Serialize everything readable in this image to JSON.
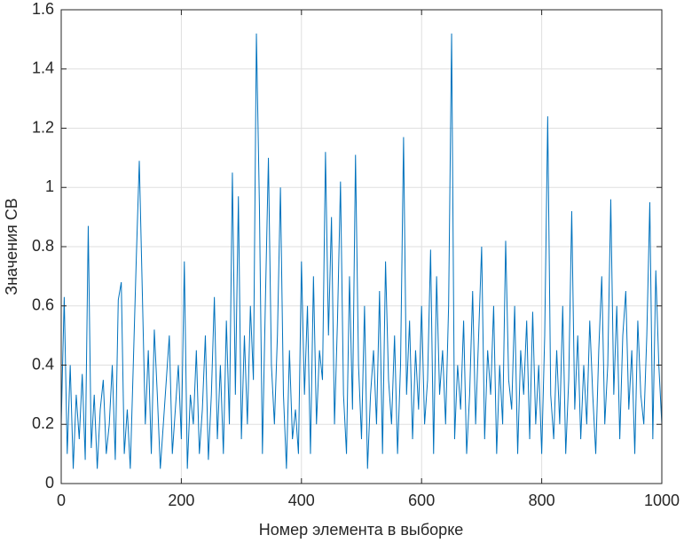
{
  "chart_data": {
    "type": "line",
    "xlabel": "Номер элемента в выборке",
    "ylabel": "Значения СВ",
    "x": [
      0,
      5,
      10,
      15,
      20,
      25,
      30,
      35,
      40,
      45,
      50,
      55,
      60,
      65,
      70,
      75,
      80,
      85,
      90,
      95,
      100,
      105,
      110,
      115,
      120,
      125,
      130,
      135,
      140,
      145,
      150,
      155,
      160,
      165,
      170,
      175,
      180,
      185,
      190,
      195,
      200,
      205,
      210,
      215,
      220,
      225,
      230,
      235,
      240,
      245,
      250,
      255,
      260,
      265,
      270,
      275,
      280,
      285,
      290,
      295,
      300,
      305,
      310,
      315,
      320,
      325,
      330,
      335,
      340,
      345,
      350,
      355,
      360,
      365,
      370,
      375,
      380,
      385,
      390,
      395,
      400,
      405,
      410,
      415,
      420,
      425,
      430,
      435,
      440,
      445,
      450,
      455,
      460,
      465,
      470,
      475,
      480,
      485,
      490,
      495,
      500,
      505,
      510,
      515,
      520,
      525,
      530,
      535,
      540,
      545,
      550,
      555,
      560,
      565,
      570,
      575,
      580,
      585,
      590,
      595,
      600,
      605,
      610,
      615,
      620,
      625,
      630,
      635,
      640,
      645,
      650,
      655,
      660,
      665,
      670,
      675,
      680,
      685,
      690,
      695,
      700,
      705,
      710,
      715,
      720,
      725,
      730,
      735,
      740,
      745,
      750,
      755,
      760,
      765,
      770,
      775,
      780,
      785,
      790,
      795,
      800,
      805,
      810,
      815,
      820,
      825,
      830,
      835,
      840,
      845,
      850,
      855,
      860,
      865,
      870,
      875,
      880,
      885,
      890,
      895,
      900,
      905,
      910,
      915,
      920,
      925,
      930,
      935,
      940,
      945,
      950,
      955,
      960,
      965,
      970,
      975,
      980,
      985,
      990,
      995,
      1000
    ],
    "series": [
      {
        "color": "#0072bd",
        "values": [
          0.2,
          0.63,
          0.1,
          0.4,
          0.05,
          0.3,
          0.15,
          0.37,
          0.08,
          0.87,
          0.12,
          0.3,
          0.05,
          0.25,
          0.35,
          0.1,
          0.2,
          0.4,
          0.08,
          0.62,
          0.68,
          0.1,
          0.25,
          0.05,
          0.4,
          0.76,
          1.09,
          0.65,
          0.2,
          0.45,
          0.1,
          0.52,
          0.3,
          0.05,
          0.2,
          0.35,
          0.5,
          0.1,
          0.25,
          0.4,
          0.15,
          0.75,
          0.05,
          0.3,
          0.2,
          0.45,
          0.1,
          0.25,
          0.5,
          0.08,
          0.3,
          0.63,
          0.15,
          0.4,
          0.1,
          0.55,
          0.2,
          1.05,
          0.3,
          0.97,
          0.15,
          0.5,
          0.2,
          0.6,
          0.35,
          1.52,
          0.94,
          0.1,
          0.62,
          1.1,
          0.4,
          0.2,
          0.5,
          1.0,
          0.3,
          0.05,
          0.45,
          0.15,
          0.25,
          0.1,
          0.75,
          0.3,
          0.6,
          0.1,
          0.7,
          0.2,
          0.45,
          0.35,
          1.12,
          0.5,
          0.9,
          0.2,
          0.55,
          1.02,
          0.3,
          0.1,
          0.7,
          0.25,
          1.11,
          0.4,
          0.15,
          0.6,
          0.05,
          0.3,
          0.45,
          0.2,
          0.65,
          0.1,
          0.75,
          0.35,
          0.2,
          0.5,
          0.1,
          0.4,
          1.17,
          0.3,
          0.55,
          0.15,
          0.45,
          0.25,
          0.6,
          0.2,
          0.35,
          0.79,
          0.1,
          0.7,
          0.3,
          0.45,
          0.2,
          0.6,
          1.52,
          0.15,
          0.4,
          0.25,
          0.55,
          0.1,
          0.3,
          0.65,
          0.2,
          0.5,
          0.8,
          0.15,
          0.45,
          0.3,
          0.6,
          0.1,
          0.4,
          0.2,
          0.82,
          0.35,
          0.25,
          0.6,
          0.1,
          0.45,
          0.3,
          0.55,
          0.15,
          0.58,
          0.2,
          0.4,
          0.1,
          0.5,
          1.24,
          0.3,
          0.15,
          0.45,
          0.2,
          0.6,
          0.1,
          0.35,
          0.92,
          0.25,
          0.5,
          0.15,
          0.4,
          0.2,
          0.55,
          0.3,
          0.1,
          0.45,
          0.7,
          0.2,
          0.4,
          0.96,
          0.3,
          0.6,
          0.15,
          0.5,
          0.65,
          0.25,
          0.45,
          0.1,
          0.55,
          0.3,
          0.2,
          0.5,
          0.95,
          0.15,
          0.72,
          0.4,
          0.2
        ]
      }
    ],
    "xlim": [
      0,
      1000
    ],
    "xticks": [
      0,
      200,
      400,
      600,
      800,
      1000
    ],
    "ylim": [
      0,
      1.6
    ],
    "yticks": [
      0,
      0.2,
      0.4,
      0.6,
      0.8,
      1,
      1.2,
      1.4,
      1.6
    ],
    "grid": true
  }
}
